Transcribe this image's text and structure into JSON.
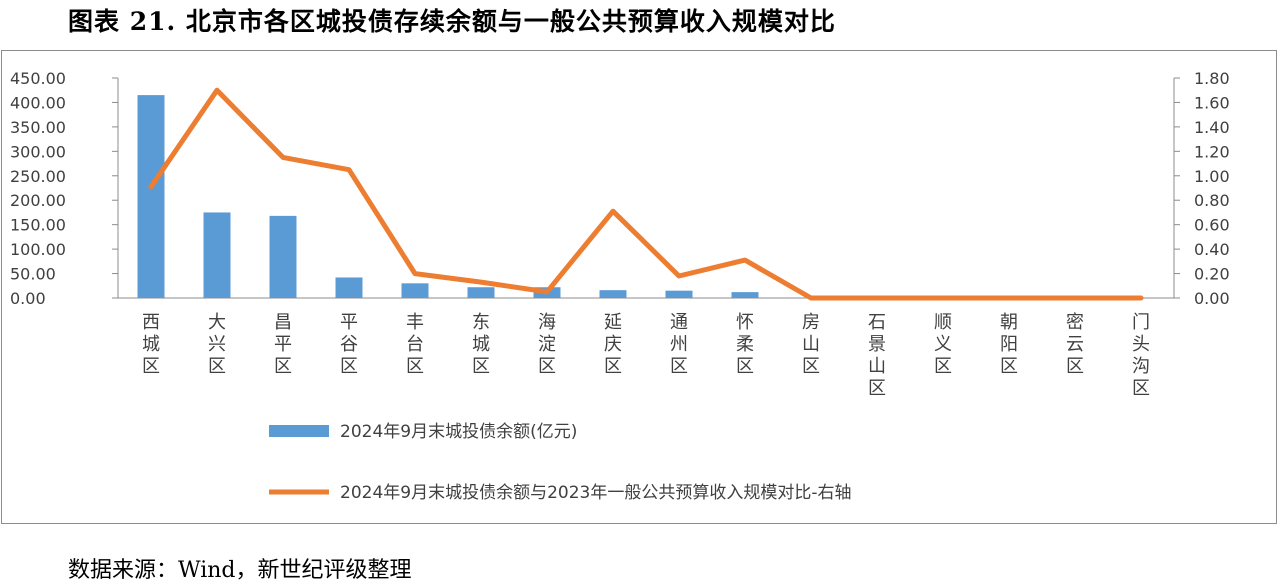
{
  "figure": {
    "title": "图表 21. 北京市各区城投债存续余额与一般公共预算收入规模对比",
    "source": "数据来源：Wind，新世纪评级整理"
  },
  "colors": {
    "bar": "#5b9bd5",
    "line": "#ed7d31",
    "axis": "#8c8c8c",
    "text": "#404040"
  },
  "chart_data": {
    "type": "bar",
    "categories": [
      "西城区",
      "大兴区",
      "昌平区",
      "平谷区",
      "丰台区",
      "东城区",
      "海淀区",
      "延庆区",
      "通州区",
      "怀柔区",
      "房山区",
      "石景山区",
      "顺义区",
      "朝阳区",
      "密云区",
      "门头沟区"
    ],
    "series": [
      {
        "name": "2024年9月末城投债余额(亿元)",
        "type": "bar",
        "axis": "left",
        "values": [
          415,
          175,
          168,
          42,
          30,
          22,
          22,
          16,
          15,
          12,
          0,
          0,
          0,
          0,
          0,
          0
        ]
      },
      {
        "name": "2024年9月末城投债余额与2023年一般公共预算收入规模对比-右轴",
        "type": "line",
        "axis": "right",
        "values": [
          0.91,
          1.7,
          1.15,
          1.05,
          0.2,
          0.13,
          0.05,
          0.71,
          0.18,
          0.31,
          0,
          0,
          0,
          0,
          0,
          0
        ]
      }
    ],
    "y_left": {
      "min": 0,
      "max": 450,
      "ticks": [
        "0.00",
        "50.00",
        "100.00",
        "150.00",
        "200.00",
        "250.00",
        "300.00",
        "350.00",
        "400.00",
        "450.00"
      ]
    },
    "y_right": {
      "min": 0,
      "max": 1.8,
      "ticks": [
        "0.00",
        "0.20",
        "0.40",
        "0.60",
        "0.80",
        "1.00",
        "1.20",
        "1.40",
        "1.60",
        "1.80"
      ]
    },
    "legend_position": "bottom",
    "grid": false
  }
}
